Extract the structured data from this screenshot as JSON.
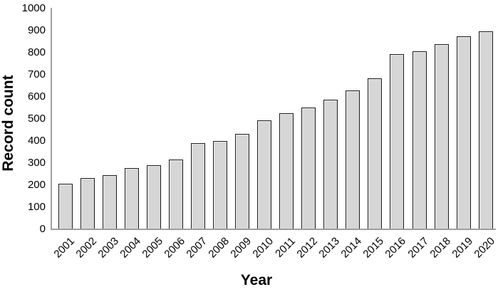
{
  "chart_data": {
    "type": "bar",
    "title": "",
    "xlabel": "Year",
    "ylabel": "Record count",
    "categories": [
      "2001",
      "2002",
      "2003",
      "2004",
      "2005",
      "2006",
      "2007",
      "2008",
      "2009",
      "2010",
      "2011",
      "2012",
      "2013",
      "2014",
      "2015",
      "2016",
      "2017",
      "2018",
      "2019",
      "2020"
    ],
    "values": [
      205,
      233,
      244,
      278,
      291,
      316,
      390,
      400,
      432,
      495,
      527,
      552,
      586,
      630,
      685,
      795,
      807,
      840,
      875,
      897
    ],
    "ylim": [
      0,
      1000
    ],
    "ytick_step": 100,
    "yticks": [
      0,
      100,
      200,
      300,
      400,
      500,
      600,
      700,
      800,
      900,
      1000
    ],
    "grid": false,
    "legend": "none",
    "bar_fill": "#d6d6d6",
    "bar_border": "#1c1c1c",
    "axis_color": "#9e9e9e",
    "text_color": "#000000"
  }
}
